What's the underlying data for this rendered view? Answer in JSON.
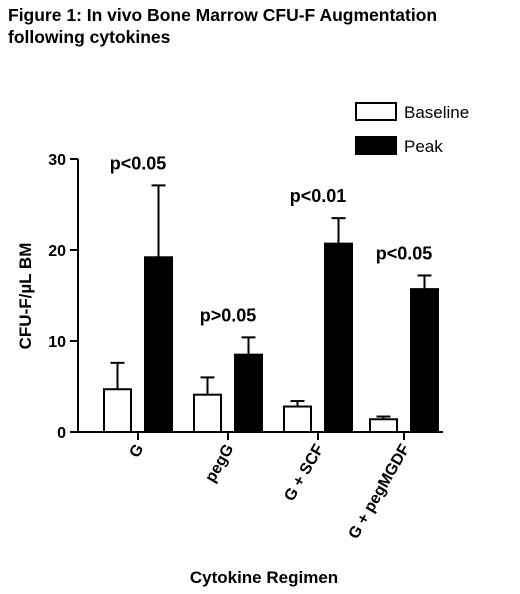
{
  "chart_data": {
    "type": "bar",
    "title_line1": "Figure 1: In vivo Bone Marrow CFU-F Augmentation",
    "title_line2": "following cytokines",
    "xlabel": "Cytokine Regimen",
    "ylabel": "CFU-F/µL BM",
    "ylim": [
      0,
      30
    ],
    "yticks": [
      0,
      10,
      20,
      30
    ],
    "categories": [
      "G",
      "pegG",
      "G + SCF",
      "G + pegMGDF"
    ],
    "series": [
      {
        "name": "Baseline",
        "fill": "#ffffff",
        "values": [
          4.7,
          4.1,
          2.8,
          1.4
        ],
        "errors": [
          2.9,
          1.9,
          0.6,
          0.3
        ]
      },
      {
        "name": "Peak",
        "fill": "#000000",
        "values": [
          19.2,
          8.5,
          20.7,
          15.7
        ],
        "errors": [
          7.9,
          1.9,
          2.8,
          1.5
        ]
      }
    ],
    "annotations": [
      "p<0.05",
      "p>0.05",
      "p<0.01",
      "p<0.05"
    ],
    "legend_position": "top-right"
  }
}
